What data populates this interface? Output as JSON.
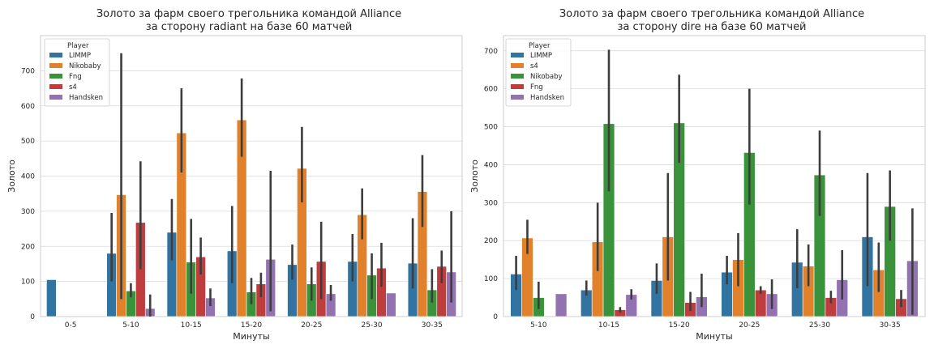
{
  "chart_data": [
    {
      "type": "bar",
      "title": "Золото за фарм своего трегольника командой Alliance\nза сторону radiant на базе 60 матчей",
      "xlabel": "Минуты",
      "ylabel": "Золото",
      "ylim": [
        0,
        800
      ],
      "yticks": [
        0,
        100,
        200,
        300,
        400,
        500,
        600,
        700
      ],
      "grid": true,
      "legend": {
        "title": "Player",
        "placement": "top-left"
      },
      "categories": [
        "0-5",
        "5-10",
        "10-15",
        "15-20",
        "20-25",
        "25-30",
        "30-35"
      ],
      "series": [
        {
          "name": "LIMMP",
          "color": "#3274a1",
          "values": [
            105,
            180,
            240,
            187,
            148,
            157,
            152
          ],
          "ci_low": [
            null,
            100,
            160,
            95,
            105,
            100,
            80
          ],
          "ci_high": [
            null,
            295,
            335,
            315,
            205,
            235,
            280
          ]
        },
        {
          "name": "Nikobaby",
          "color": "#e1812c",
          "values": [
            null,
            347,
            523,
            560,
            422,
            290,
            356
          ],
          "ci_low": [
            null,
            50,
            410,
            455,
            325,
            220,
            255
          ],
          "ci_high": [
            null,
            750,
            650,
            678,
            540,
            365,
            460
          ]
        },
        {
          "name": "Fng",
          "color": "#3a923a",
          "values": [
            null,
            73,
            155,
            70,
            93,
            118,
            76
          ],
          "ci_low": [
            null,
            55,
            65,
            35,
            45,
            50,
            40
          ],
          "ci_high": [
            null,
            95,
            278,
            110,
            140,
            180,
            135
          ]
        },
        {
          "name": "s4",
          "color": "#c03d3e",
          "values": [
            null,
            268,
            170,
            93,
            157,
            138,
            143
          ],
          "ci_low": [
            null,
            135,
            120,
            55,
            50,
            85,
            95
          ],
          "ci_high": [
            null,
            442,
            225,
            125,
            270,
            210,
            188
          ]
        },
        {
          "name": "Handsken",
          "color": "#9372b2",
          "values": [
            null,
            23,
            53,
            163,
            65,
            67,
            127
          ],
          "ci_low": [
            null,
            0,
            30,
            15,
            45,
            null,
            40
          ],
          "ci_high": [
            null,
            63,
            80,
            415,
            90,
            null,
            300
          ]
        }
      ]
    },
    {
      "type": "bar",
      "title": "Золото за фарм своего трегольника командой Alliance\nза сторону dire на базе 60 матчей",
      "xlabel": "Минуты",
      "ylabel": "Золото",
      "ylim": [
        0,
        740
      ],
      "yticks": [
        0,
        100,
        200,
        300,
        400,
        500,
        600,
        700
      ],
      "grid": true,
      "legend": {
        "title": "Player",
        "placement": "top-left"
      },
      "categories": [
        "5-10",
        "10-15",
        "15-20",
        "20-25",
        "25-30",
        "30-35"
      ],
      "series": [
        {
          "name": "LIMMP",
          "color": "#3274a1",
          "values": [
            112,
            70,
            95,
            117,
            143,
            210
          ],
          "ci_low": [
            70,
            55,
            60,
            85,
            75,
            80
          ],
          "ci_high": [
            160,
            95,
            140,
            160,
            230,
            378
          ]
        },
        {
          "name": "s4",
          "color": "#e1812c",
          "values": [
            207,
            197,
            210,
            150,
            133,
            123
          ],
          "ci_low": [
            165,
            120,
            95,
            80,
            80,
            65
          ],
          "ci_high": [
            255,
            300,
            378,
            220,
            190,
            195
          ]
        },
        {
          "name": "Nikobaby",
          "color": "#3a923a",
          "values": [
            50,
            508,
            510,
            432,
            373,
            290
          ],
          "ci_low": [
            20,
            330,
            405,
            295,
            265,
            200
          ],
          "ci_high": [
            92,
            703,
            637,
            600,
            490,
            385
          ]
        },
        {
          "name": "Fng",
          "color": "#c03d3e",
          "values": [
            null,
            18,
            37,
            70,
            50,
            47
          ],
          "ci_low": [
            null,
            10,
            15,
            60,
            35,
            25
          ],
          "ci_high": [
            null,
            25,
            65,
            80,
            68,
            70
          ]
        },
        {
          "name": "Handsken",
          "color": "#9372b2",
          "values": [
            60,
            58,
            52,
            60,
            97,
            147
          ],
          "ci_low": [
            null,
            45,
            25,
            20,
            45,
            5
          ],
          "ci_high": [
            null,
            72,
            113,
            98,
            175,
            285
          ]
        }
      ]
    }
  ]
}
